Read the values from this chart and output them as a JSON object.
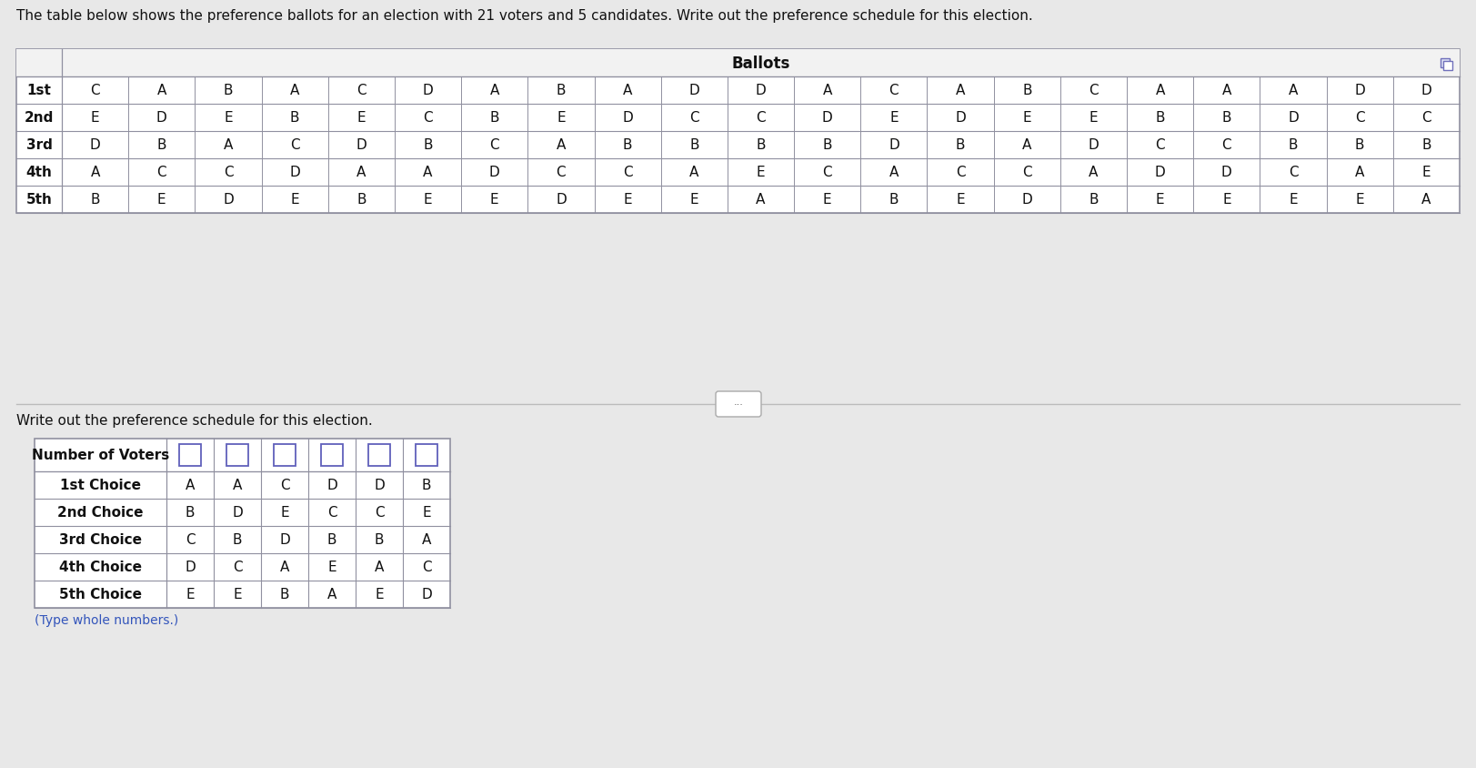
{
  "title": "The table below shows the preference ballots for an election with 21 voters and 5 candidates. Write out the preference schedule for this election.",
  "ballots_header": "Ballots",
  "row_labels": [
    "1st",
    "2nd",
    "3rd",
    "4th",
    "5th"
  ],
  "ballot_columns": [
    [
      "C",
      "E",
      "D",
      "A",
      "B"
    ],
    [
      "A",
      "D",
      "B",
      "C",
      "E"
    ],
    [
      "B",
      "E",
      "A",
      "C",
      "D"
    ],
    [
      "A",
      "B",
      "C",
      "D",
      "E"
    ],
    [
      "C",
      "E",
      "D",
      "A",
      "B"
    ],
    [
      "D",
      "C",
      "B",
      "A",
      "E"
    ],
    [
      "A",
      "B",
      "C",
      "D",
      "E"
    ],
    [
      "B",
      "E",
      "A",
      "C",
      "D"
    ],
    [
      "A",
      "D",
      "B",
      "C",
      "E"
    ],
    [
      "D",
      "C",
      "B",
      "A",
      "E"
    ],
    [
      "D",
      "C",
      "B",
      "E",
      "A"
    ],
    [
      "A",
      "D",
      "B",
      "C",
      "E"
    ],
    [
      "C",
      "E",
      "D",
      "A",
      "B"
    ],
    [
      "A",
      "D",
      "B",
      "C",
      "E"
    ],
    [
      "B",
      "E",
      "A",
      "C",
      "D"
    ],
    [
      "C",
      "E",
      "D",
      "A",
      "B"
    ],
    [
      "A",
      "B",
      "C",
      "D",
      "E"
    ],
    [
      "A",
      "B",
      "C",
      "D",
      "E"
    ],
    [
      "A",
      "D",
      "B",
      "C",
      "E"
    ],
    [
      "D",
      "C",
      "B",
      "A",
      "E"
    ],
    [
      "D",
      "C",
      "B",
      "E",
      "A"
    ]
  ],
  "schedule_header": "Write out the preference schedule for this election.",
  "schedule_choices": [
    "1st Choice",
    "2nd Choice",
    "3rd Choice",
    "4th Choice",
    "5th Choice"
  ],
  "schedule_data": [
    [
      "A",
      "A",
      "C",
      "D",
      "D",
      "B"
    ],
    [
      "B",
      "D",
      "E",
      "C",
      "C",
      "E"
    ],
    [
      "C",
      "B",
      "D",
      "B",
      "B",
      "A"
    ],
    [
      "D",
      "C",
      "A",
      "E",
      "A",
      "C"
    ],
    [
      "E",
      "E",
      "B",
      "A",
      "E",
      "D"
    ]
  ],
  "type_note": "(Type whole numbers.)",
  "bg_color": "#e8e8e8",
  "table_bg": "#ffffff",
  "cell_border": "#9090a0",
  "text_color": "#111111",
  "checkbox_border": "#6060bb",
  "blue_text": "#3355bb"
}
